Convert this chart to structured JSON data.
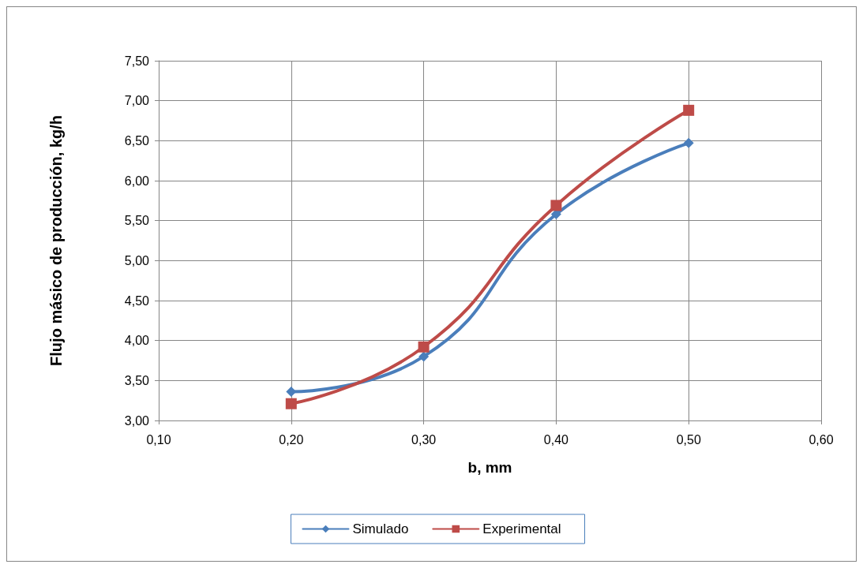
{
  "chart_data": {
    "type": "line",
    "xlabel": "b, mm",
    "ylabel": "Flujo másico de producción, kg/h",
    "series": [
      {
        "name": "Simulado",
        "color": "#4a7ebb",
        "marker": "diamond",
        "x": [
          0.2,
          0.3,
          0.4,
          0.5
        ],
        "values": [
          3.36,
          3.8,
          5.58,
          6.47
        ]
      },
      {
        "name": "Experimental",
        "color": "#be4b48",
        "marker": "square",
        "x": [
          0.2,
          0.3,
          0.4,
          0.5
        ],
        "values": [
          3.21,
          3.92,
          5.69,
          6.88
        ]
      }
    ],
    "xlim": [
      0.1,
      0.6
    ],
    "xticks": [
      {
        "value": 0.1,
        "label": "0,10"
      },
      {
        "value": 0.2,
        "label": "0,20"
      },
      {
        "value": 0.3,
        "label": "0,30"
      },
      {
        "value": 0.4,
        "label": "0,40"
      },
      {
        "value": 0.5,
        "label": "0,50"
      },
      {
        "value": 0.6,
        "label": "0,60"
      }
    ],
    "ylim": [
      3,
      7.5
    ],
    "yticks": [
      {
        "value": 3,
        "label": "3,00"
      },
      {
        "value": 3.5,
        "label": "3,50"
      },
      {
        "value": 4,
        "label": "4,00"
      },
      {
        "value": 4.5,
        "label": "4,50"
      },
      {
        "value": 5,
        "label": "5,00"
      },
      {
        "value": 5.5,
        "label": "5,50"
      },
      {
        "value": 6,
        "label": "6,00"
      },
      {
        "value": 6.5,
        "label": "6,50"
      },
      {
        "value": 7,
        "label": "7,00"
      },
      {
        "value": 7.5,
        "label": "7,50"
      }
    ],
    "grid": true,
    "legend": "bottom",
    "line_style": "solid"
  }
}
